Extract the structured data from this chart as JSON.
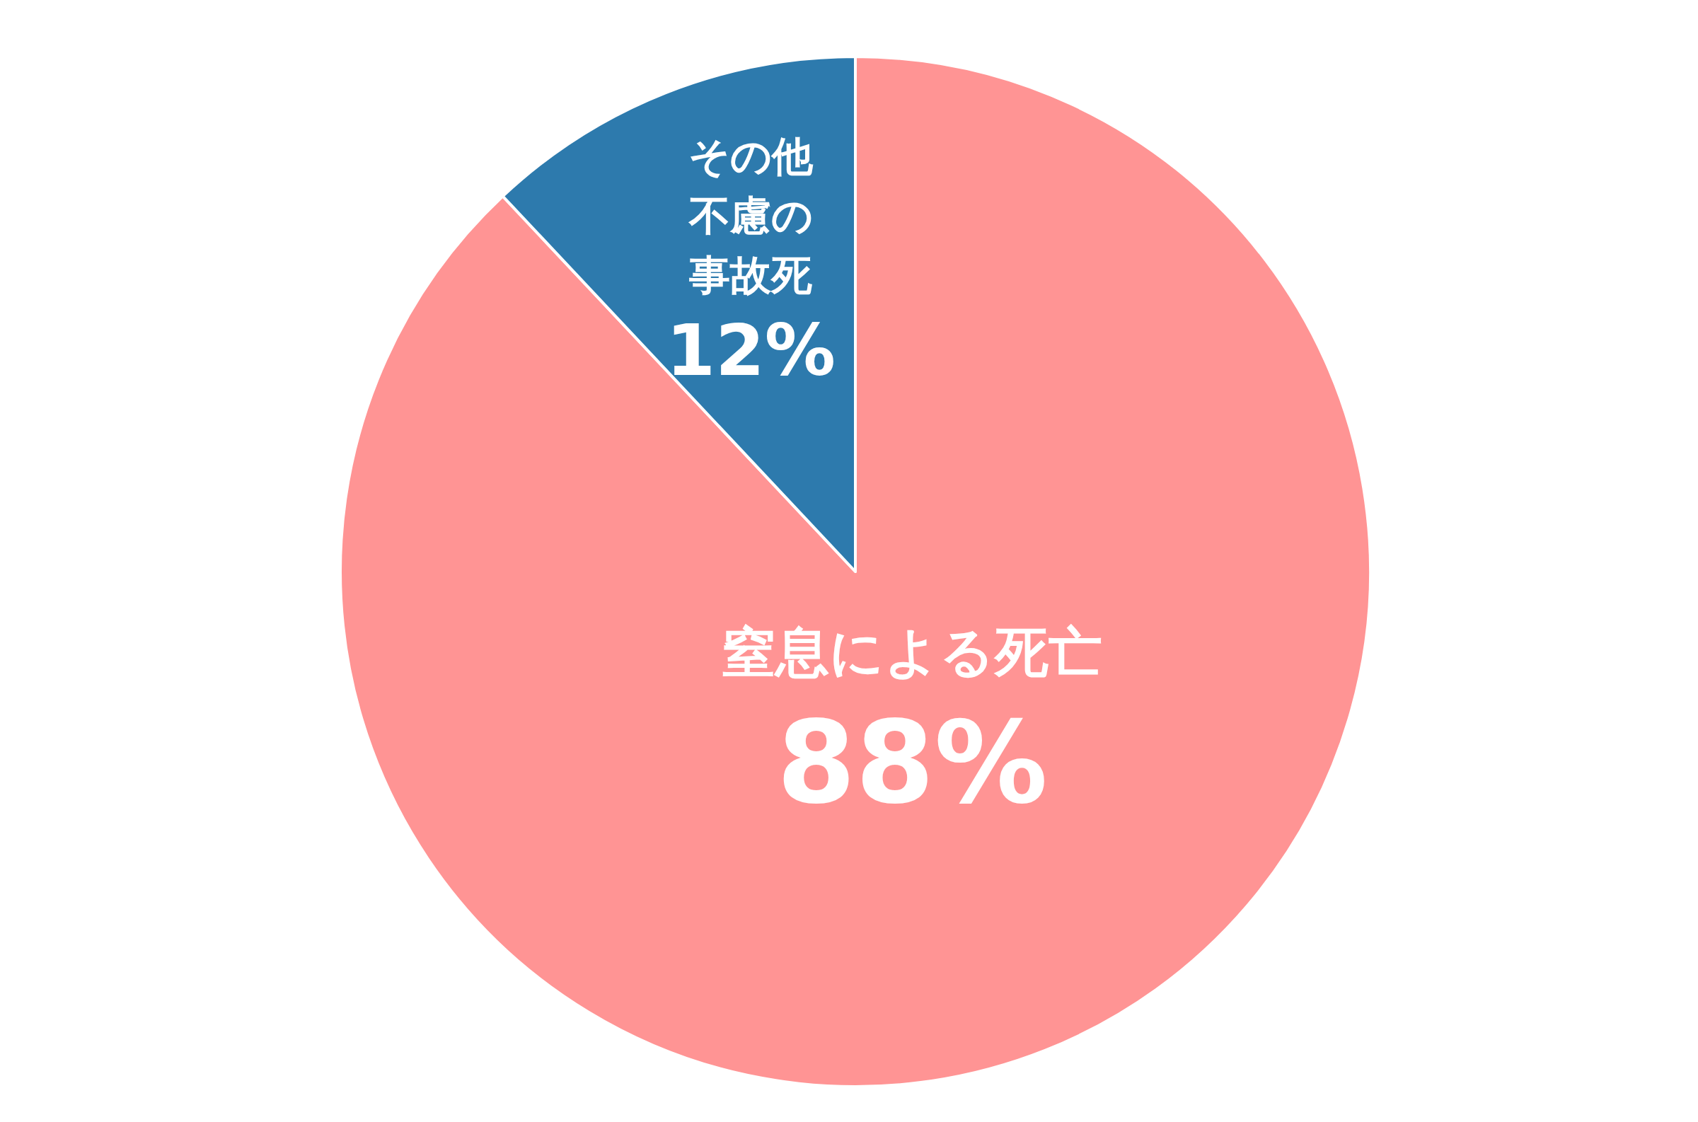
{
  "chart_data": {
    "type": "pie",
    "categories": [
      "窒息による死亡",
      "その他不慮の事故死"
    ],
    "values": [
      88,
      12
    ],
    "colors": [
      "#ff9494",
      "#2d7aad"
    ],
    "value_labels": [
      "88%",
      "12%"
    ]
  }
}
